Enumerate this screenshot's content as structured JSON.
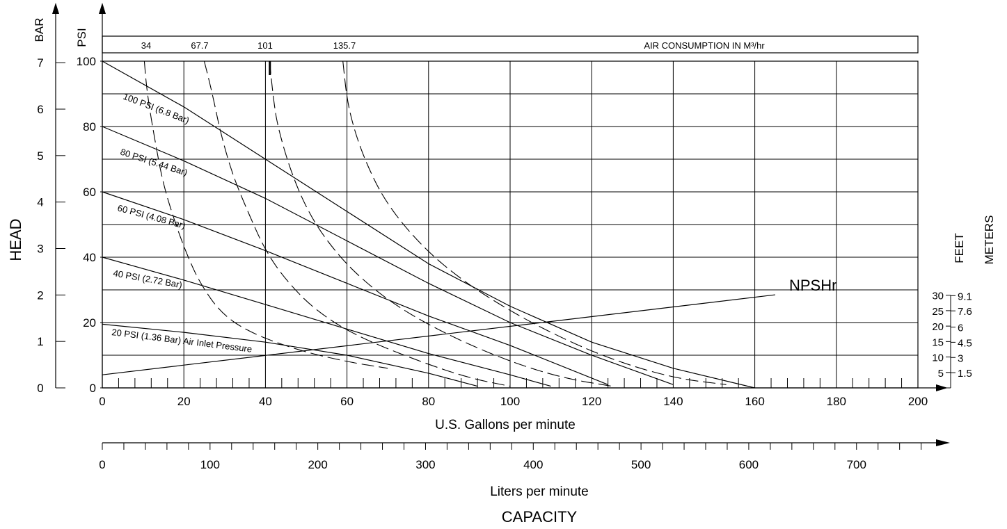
{
  "chart_data": {
    "type": "line",
    "title": "",
    "xlabel": "U.S. Gallons per minute",
    "x2label": "Liters per minute",
    "xtitle": "CAPACITY",
    "ylabel": "HEAD",
    "xlim": [
      0,
      200
    ],
    "ylim": [
      0,
      100
    ],
    "x_ticks": [
      0,
      20,
      40,
      60,
      80,
      100,
      120,
      140,
      160,
      180,
      200
    ],
    "y_ticks": [
      0,
      20,
      40,
      60,
      80,
      100
    ],
    "y_units": "PSI",
    "bar_units": "BAR",
    "bar_ticks": [
      0,
      1,
      2,
      3,
      4,
      5,
      6,
      7
    ],
    "lpm_ticks": [
      0,
      100,
      200,
      300,
      400,
      500,
      600,
      700
    ],
    "grid": true,
    "air_header": {
      "values": [
        "34",
        "67.7",
        "101",
        "135.7"
      ],
      "label": "AIR CONSUMPTION IN M³/hr"
    },
    "npsh": {
      "feet_label": "FEET",
      "meters_label": "METERS",
      "feet": [
        "30",
        "25",
        "20",
        "15",
        "10",
        "5"
      ],
      "meters": [
        "9.1",
        "7.6",
        "6",
        "4.5",
        "3",
        "1.5"
      ],
      "curve_label": "NPSHr",
      "curve": [
        [
          0,
          4
        ],
        [
          165,
          28.5
        ]
      ]
    },
    "series": [
      {
        "name": "100 PSI (6.8 Bar)",
        "label": "100 PSI (6.8 Bar)",
        "points": [
          [
            0,
            100
          ],
          [
            20,
            86
          ],
          [
            40,
            70
          ],
          [
            60,
            54
          ],
          [
            80,
            38
          ],
          [
            100,
            25
          ],
          [
            120,
            14
          ],
          [
            140,
            6
          ],
          [
            160,
            0
          ]
        ]
      },
      {
        "name": "80 PSI (5.44 Bar)",
        "label": "80 PSI (5.44 Bar)",
        "points": [
          [
            0,
            80
          ],
          [
            20,
            69.5
          ],
          [
            40,
            58
          ],
          [
            60,
            45
          ],
          [
            80,
            32
          ],
          [
            100,
            20
          ],
          [
            120,
            10
          ],
          [
            140,
            1
          ]
        ]
      },
      {
        "name": "60 PSI (4.08 Bar)",
        "label": "60 PSI (4.08 Bar)",
        "points": [
          [
            0,
            60
          ],
          [
            20,
            51.5
          ],
          [
            40,
            42
          ],
          [
            60,
            32
          ],
          [
            80,
            22
          ],
          [
            100,
            13
          ],
          [
            124,
            1
          ]
        ]
      },
      {
        "name": "40 PSI (2.72 Bar)",
        "label": "40 PSI (2.72 Bar)",
        "points": [
          [
            0,
            40
          ],
          [
            20,
            33
          ],
          [
            40,
            25.5
          ],
          [
            60,
            18
          ],
          [
            80,
            10.5
          ],
          [
            100,
            4
          ],
          [
            110,
            0.5
          ]
        ]
      },
      {
        "name": "20 PSI (1.36 Bar) Air Inlet Pressure",
        "label": "20 PSI (1.36 Bar) Air Inlet Pressure",
        "points": [
          [
            0,
            19.5
          ],
          [
            20,
            17
          ],
          [
            40,
            14
          ],
          [
            60,
            10
          ],
          [
            80,
            4.5
          ],
          [
            92,
            0.5
          ]
        ]
      }
    ],
    "air_curves": [
      {
        "value": "34",
        "points": [
          [
            10.3,
            100
          ],
          [
            11,
            90
          ],
          [
            13,
            75
          ],
          [
            15,
            62
          ],
          [
            18,
            50
          ],
          [
            21,
            40
          ],
          [
            24,
            32
          ],
          [
            29,
            23
          ],
          [
            36,
            17
          ],
          [
            48,
            11.5
          ],
          [
            60,
            8
          ],
          [
            70,
            6
          ]
        ]
      },
      {
        "value": "67.7",
        "points": [
          [
            25,
            100
          ],
          [
            27,
            90
          ],
          [
            29,
            78
          ],
          [
            32,
            65
          ],
          [
            36,
            53
          ],
          [
            40,
            42
          ],
          [
            45,
            33
          ],
          [
            52,
            24
          ],
          [
            62,
            16
          ],
          [
            78,
            8
          ],
          [
            90,
            3
          ],
          [
            100,
            0.5
          ]
        ]
      },
      {
        "value": "101",
        "points": [
          [
            41,
            100
          ],
          [
            42,
            88
          ],
          [
            43,
            80
          ],
          [
            46,
            67
          ],
          [
            50,
            55
          ],
          [
            55,
            45
          ],
          [
            62,
            35
          ],
          [
            72,
            25
          ],
          [
            85,
            16
          ],
          [
            100,
            8
          ],
          [
            113,
            3
          ],
          [
            125,
            0.5
          ]
        ]
      },
      {
        "value": "135.7",
        "points": [
          [
            59,
            100
          ],
          [
            60,
            88
          ],
          [
            62,
            78
          ],
          [
            65,
            68
          ],
          [
            69,
            58
          ],
          [
            75,
            48
          ],
          [
            83,
            38
          ],
          [
            94,
            28
          ],
          [
            108,
            18
          ],
          [
            124,
            9
          ],
          [
            140,
            3
          ],
          [
            153,
            1
          ]
        ]
      }
    ]
  }
}
